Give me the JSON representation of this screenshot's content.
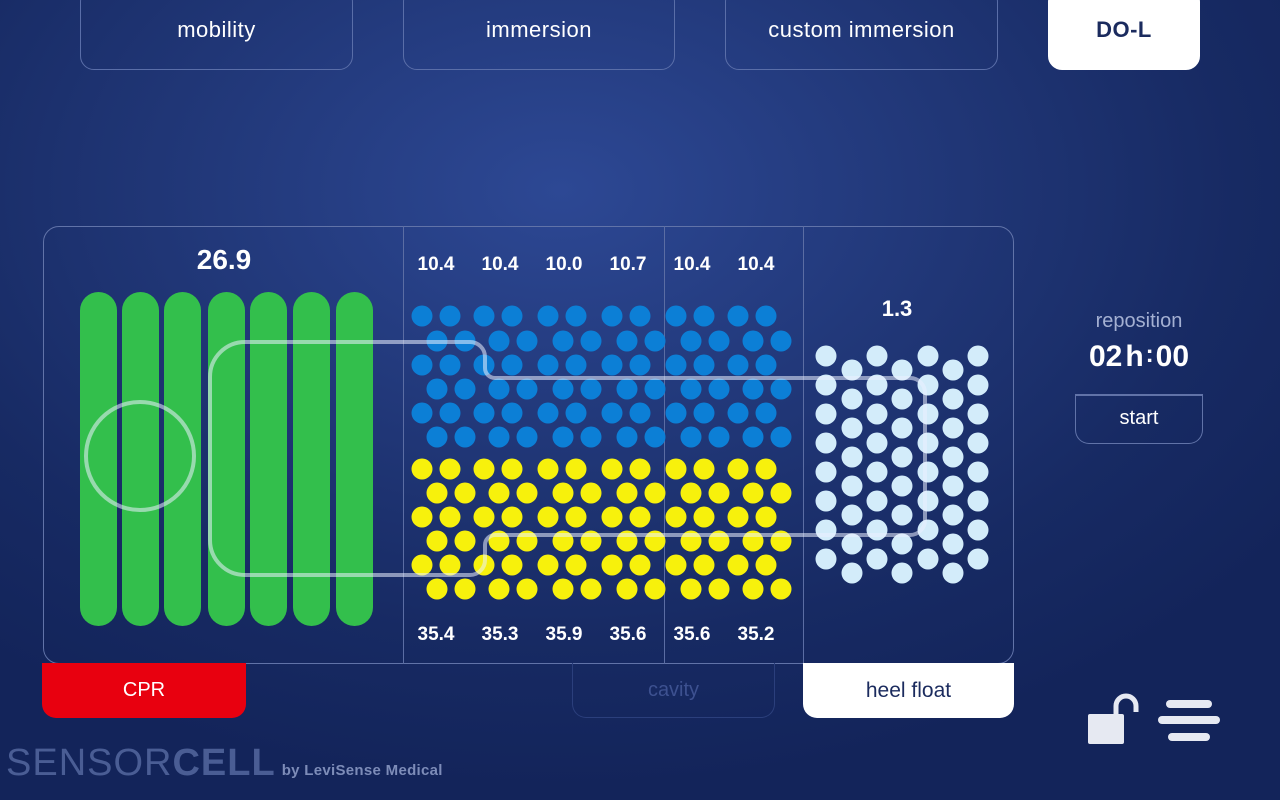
{
  "tabs": [
    {
      "label": "mobility",
      "active": false
    },
    {
      "label": "immersion",
      "active": false
    },
    {
      "label": "custom immersion",
      "active": false
    },
    {
      "label": "DO-L",
      "active": true
    }
  ],
  "zones": {
    "cpr_value": "26.9",
    "top_values": [
      "10.4",
      "10.4",
      "10.0",
      "10.7",
      "10.4",
      "10.4"
    ],
    "bottom_values": [
      "35.4",
      "35.3",
      "35.9",
      "35.6",
      "35.6",
      "35.2"
    ],
    "heel_value": "1.3"
  },
  "colors": {
    "green": "#33bf4c",
    "blue": "#0c7fd6",
    "yellow": "#f7f10c",
    "light_blue": "#d3ecfa",
    "cpr_red": "#e8000f"
  },
  "buttons": {
    "cpr": "CPR",
    "cavity": "cavity",
    "heel_float": "heel float"
  },
  "reposition": {
    "label": "reposition",
    "hours": "02",
    "h_unit": "h",
    "sep": ":",
    "minutes": "00",
    "start": "start"
  },
  "icons": [
    "unlock-icon",
    "menu-icon"
  ],
  "brand": {
    "light": "SENSOR",
    "bold": "CELL",
    "by": "by LeviSense Medical"
  }
}
